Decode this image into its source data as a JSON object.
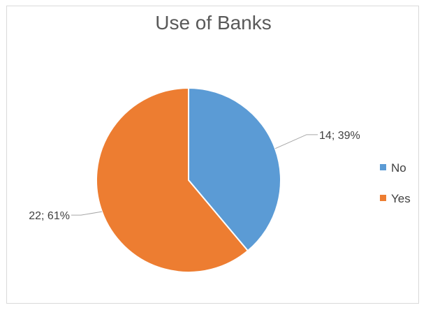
{
  "chart_data": {
    "type": "pie",
    "title": "Use of Banks",
    "categories": [
      "No",
      "Yes"
    ],
    "values": [
      14,
      22
    ],
    "percentages": [
      "39%",
      "61%"
    ],
    "data_labels": [
      "14; 39%",
      "22; 61%"
    ],
    "colors": [
      "#5b9bd5",
      "#ed7d31"
    ],
    "legend_placement": "right"
  }
}
